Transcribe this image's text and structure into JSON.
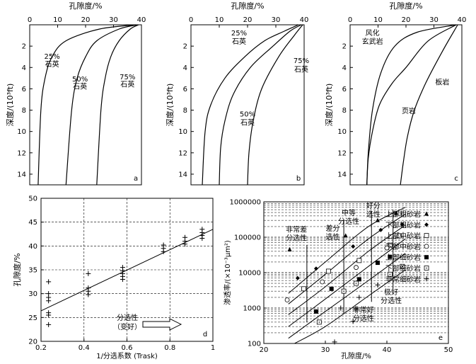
{
  "chart_data": [
    {
      "panel": "a",
      "type": "line",
      "xlabel": "孔隙度/%",
      "ylabel": "深度/(10³ft)",
      "xlim": [
        0,
        40
      ],
      "ylim": [
        15,
        0
      ],
      "xticks": [
        0,
        10,
        20,
        30,
        40
      ],
      "yticks": [
        2,
        4,
        6,
        8,
        10,
        12,
        14
      ],
      "series": [
        {
          "name": "25%石英",
          "x": [
            38,
            25,
            13,
            8,
            5.5,
            4,
            3
          ],
          "y": [
            0,
            0.4,
            1.5,
            3,
            5,
            8,
            15
          ]
        },
        {
          "name": "50%石英",
          "x": [
            38.5,
            32,
            24,
            20,
            17,
            15,
            13
          ],
          "y": [
            0,
            0.4,
            1.5,
            3,
            5,
            8,
            15
          ]
        },
        {
          "name": "75%石英",
          "x": [
            39,
            36,
            32,
            29,
            27,
            25.5,
            24
          ],
          "y": [
            0,
            0.4,
            1.5,
            3,
            5,
            8,
            15
          ]
        }
      ],
      "labels": [
        {
          "text": "25%",
          "x": 8,
          "y": 3.2
        },
        {
          "text": "石英",
          "x": 8,
          "y": 3.9
        },
        {
          "text": "50%",
          "x": 18,
          "y": 5.3
        },
        {
          "text": "石英",
          "x": 18,
          "y": 6.0
        },
        {
          "text": "75%",
          "x": 35,
          "y": 5.1
        },
        {
          "text": "石英",
          "x": 35,
          "y": 5.8
        },
        {
          "text": "a",
          "x": 38,
          "y": 14.6
        }
      ]
    },
    {
      "panel": "b",
      "type": "line",
      "xlim": [
        0,
        40
      ],
      "ylim": [
        15,
        0
      ],
      "xticks": [
        0,
        10,
        20,
        30,
        40
      ],
      "yticks": [
        2,
        4,
        6,
        8,
        10,
        12,
        14
      ],
      "series": [
        {
          "name": "25%石英",
          "x": [
            38,
            33,
            26,
            19,
            12,
            7,
            5,
            4
          ],
          "y": [
            0,
            0.6,
            1.5,
            3,
            5,
            7.5,
            10,
            15
          ]
        },
        {
          "name": "50%石英",
          "x": [
            39,
            35,
            29,
            21,
            15,
            12,
            10.5,
            10
          ],
          "y": [
            0,
            0.6,
            2,
            4,
            6.5,
            9,
            11.5,
            15
          ]
        },
        {
          "name": "75%石英",
          "x": [
            39.5,
            36.5,
            31,
            25,
            22,
            20.5,
            20
          ],
          "y": [
            0,
            1,
            3,
            6,
            9,
            12,
            15
          ]
        }
      ],
      "labels": [
        {
          "text": "25%",
          "x": 17,
          "y": 1.0
        },
        {
          "text": "石英",
          "x": 17,
          "y": 1.8
        },
        {
          "text": "75%",
          "x": 39,
          "y": 3.6
        },
        {
          "text": "石英",
          "x": 39,
          "y": 4.4
        },
        {
          "text": "50%",
          "x": 20,
          "y": 8.6
        },
        {
          "text": "石英",
          "x": 20,
          "y": 9.4
        },
        {
          "text": "b",
          "x": 38,
          "y": 14.6
        }
      ]
    },
    {
      "panel": "c",
      "type": "line",
      "xlim": [
        0,
        40
      ],
      "ylim": [
        15,
        0
      ],
      "xticks": [
        0,
        10,
        20,
        30,
        40
      ],
      "yticks": [
        2,
        4,
        6,
        8,
        10,
        12,
        14
      ],
      "series": [
        {
          "name": "风化玄武岩",
          "x": [
            38,
            24,
            16,
            11,
            8,
            6.5,
            6
          ],
          "y": [
            0,
            0.7,
            2,
            4.5,
            8,
            12,
            15
          ]
        },
        {
          "name": "页岩",
          "x": [
            38,
            28,
            20,
            15,
            10.5,
            8,
            6.5,
            6
          ],
          "y": [
            0,
            1.5,
            4,
            5.5,
            7.5,
            10,
            12.5,
            15
          ]
        },
        {
          "name": "板岩",
          "x": [
            38.5,
            33,
            27,
            23,
            20.5,
            19,
            18
          ],
          "y": [
            0,
            2.5,
            5.5,
            8,
            10.5,
            13,
            15
          ]
        }
      ],
      "labels": [
        {
          "text": "风化",
          "x": 8,
          "y": 1.0
        },
        {
          "text": "玄武岩",
          "x": 8,
          "y": 1.8
        },
        {
          "text": "板岩",
          "x": 33,
          "y": 5.6
        },
        {
          "text": "页岩",
          "x": 21,
          "y": 8.3
        },
        {
          "text": "c",
          "x": 38,
          "y": 14.6
        }
      ]
    },
    {
      "panel": "d",
      "type": "scatter",
      "xlabel": "1/分选系数 (Trask)",
      "ylabel": "孔隙度/%",
      "xlim": [
        0.2,
        1.0
      ],
      "ylim": [
        20,
        50
      ],
      "xticks": [
        0.2,
        0.4,
        0.6,
        0.8,
        1.0
      ],
      "yticks": [
        20,
        25,
        30,
        35,
        40,
        45,
        50
      ],
      "points": [
        {
          "x": 0.235,
          "y": 32.5
        },
        {
          "x": 0.235,
          "y": 30.0
        },
        {
          "x": 0.235,
          "y": 29.2
        },
        {
          "x": 0.235,
          "y": 28.5
        },
        {
          "x": 0.235,
          "y": 26.0
        },
        {
          "x": 0.235,
          "y": 25.5
        },
        {
          "x": 0.235,
          "y": 23.5
        },
        {
          "x": 0.42,
          "y": 34.2
        },
        {
          "x": 0.42,
          "y": 31.2
        },
        {
          "x": 0.42,
          "y": 30.5
        },
        {
          "x": 0.42,
          "y": 29.8
        },
        {
          "x": 0.58,
          "y": 35.5
        },
        {
          "x": 0.58,
          "y": 34.8
        },
        {
          "x": 0.58,
          "y": 34.2
        },
        {
          "x": 0.58,
          "y": 33.6
        },
        {
          "x": 0.58,
          "y": 33.0
        },
        {
          "x": 0.77,
          "y": 40.2
        },
        {
          "x": 0.77,
          "y": 39.5
        },
        {
          "x": 0.77,
          "y": 38.8
        },
        {
          "x": 0.87,
          "y": 41.8
        },
        {
          "x": 0.87,
          "y": 41.0
        },
        {
          "x": 0.87,
          "y": 40.4
        },
        {
          "x": 0.95,
          "y": 43.5
        },
        {
          "x": 0.95,
          "y": 42.8
        },
        {
          "x": 0.95,
          "y": 42.2
        },
        {
          "x": 0.95,
          "y": 41.6
        }
      ],
      "trend": {
        "x": [
          0.2,
          1.0
        ],
        "y": [
          26.4,
          43.5
        ]
      },
      "annotation": {
        "line1": "分选性",
        "line2": "（变好）"
      },
      "panel_label": "d"
    },
    {
      "panel": "e",
      "type": "scatter",
      "xlabel": "孔隙度/%",
      "ylabel": "渗透率/(×10⁻³μm²)",
      "xlim": [
        20,
        50
      ],
      "ylim": [
        100,
        1000000
      ],
      "yscale": "log",
      "xticks": [
        20,
        30,
        40,
        50
      ],
      "ytick_labels": [
        "100",
        "1000",
        "10000",
        "100000",
        "1000000"
      ],
      "legend": [
        {
          "label": "上部粗砂岩",
          "marker": "filled-triangle"
        },
        {
          "label": "下部粗砂岩",
          "marker": "filled-diamond"
        },
        {
          "label": "上部中砂岩",
          "marker": "open-square"
        },
        {
          "label": "下部中砂岩",
          "marker": "open-circle"
        },
        {
          "label": "上部细砂岩",
          "marker": "filled-square"
        },
        {
          "label": "下部细砂岩",
          "marker": "open-square-dot"
        },
        {
          "label": "非常细砂岩",
          "marker": "plus"
        }
      ],
      "sorting_labels": [
        {
          "lines": [
            "非常差",
            "分选性"
          ],
          "x": 25.3,
          "y": 140000
        },
        {
          "lines": [
            "差分",
            "选性"
          ],
          "x": 31.2,
          "y": 150000
        },
        {
          "lines": [
            "中等",
            "分选性"
          ],
          "x": 33.8,
          "y": 420000
        },
        {
          "lines": [
            "好分",
            "选性"
          ],
          "x": 37.8,
          "y": 660000
        },
        {
          "lines": [
            "极好",
            "分选性"
          ],
          "x": 40.7,
          "y": 2400
        },
        {
          "lines": [
            "非常好",
            "分选性"
          ],
          "x": 36.2,
          "y": 750
        }
      ],
      "points": [
        {
          "x": 41.5,
          "y": 480000,
          "m": "filled-triangle"
        },
        {
          "x": 38.5,
          "y": 300000,
          "m": "filled-triangle"
        },
        {
          "x": 33.3,
          "y": 110000,
          "m": "filled-triangle"
        },
        {
          "x": 24.2,
          "y": 45000,
          "m": "filled-triangle"
        },
        {
          "x": 42.5,
          "y": 230000,
          "m": "filled-diamond"
        },
        {
          "x": 39.0,
          "y": 160000,
          "m": "filled-diamond"
        },
        {
          "x": 34.5,
          "y": 55000,
          "m": "filled-diamond"
        },
        {
          "x": 28.5,
          "y": 13000,
          "m": "filled-diamond"
        },
        {
          "x": 25.5,
          "y": 7000,
          "m": "filled-diamond"
        },
        {
          "x": 42.0,
          "y": 110000,
          "m": "open-square"
        },
        {
          "x": 40.5,
          "y": 60000,
          "m": "open-square"
        },
        {
          "x": 35.5,
          "y": 22000,
          "m": "open-square"
        },
        {
          "x": 30.5,
          "y": 11000,
          "m": "open-square"
        },
        {
          "x": 26.5,
          "y": 3500,
          "m": "open-square"
        },
        {
          "x": 40.0,
          "y": 50000,
          "m": "open-circle"
        },
        {
          "x": 35.0,
          "y": 14000,
          "m": "open-circle"
        },
        {
          "x": 29.5,
          "y": 5500,
          "m": "open-circle"
        },
        {
          "x": 23.8,
          "y": 1700,
          "m": "open-circle"
        },
        {
          "x": 40.5,
          "y": 28000,
          "m": "filled-square"
        },
        {
          "x": 38.5,
          "y": 19000,
          "m": "filled-square"
        },
        {
          "x": 35.5,
          "y": 6500,
          "m": "filled-square"
        },
        {
          "x": 31.0,
          "y": 3500,
          "m": "filled-square"
        },
        {
          "x": 28.5,
          "y": 800,
          "m": "filled-square"
        },
        {
          "x": 42.5,
          "y": 15000,
          "m": "open-square-dot"
        },
        {
          "x": 40.5,
          "y": 9000,
          "m": "open-square-dot"
        },
        {
          "x": 35.0,
          "y": 5000,
          "m": "open-square-dot"
        },
        {
          "x": 33.0,
          "y": 3000,
          "m": "open-square-dot"
        },
        {
          "x": 29.0,
          "y": 400,
          "m": "open-square-dot"
        },
        {
          "x": 38.5,
          "y": 4500,
          "m": "plus"
        },
        {
          "x": 35.5,
          "y": 2000,
          "m": "plus"
        },
        {
          "x": 35.0,
          "y": 950,
          "m": "plus"
        },
        {
          "x": 32.5,
          "y": 1000,
          "m": "plus"
        },
        {
          "x": 34.5,
          "y": 420,
          "m": "plus"
        },
        {
          "x": 31.5,
          "y": 110,
          "m": "plus"
        }
      ],
      "panel_label": "e"
    }
  ]
}
